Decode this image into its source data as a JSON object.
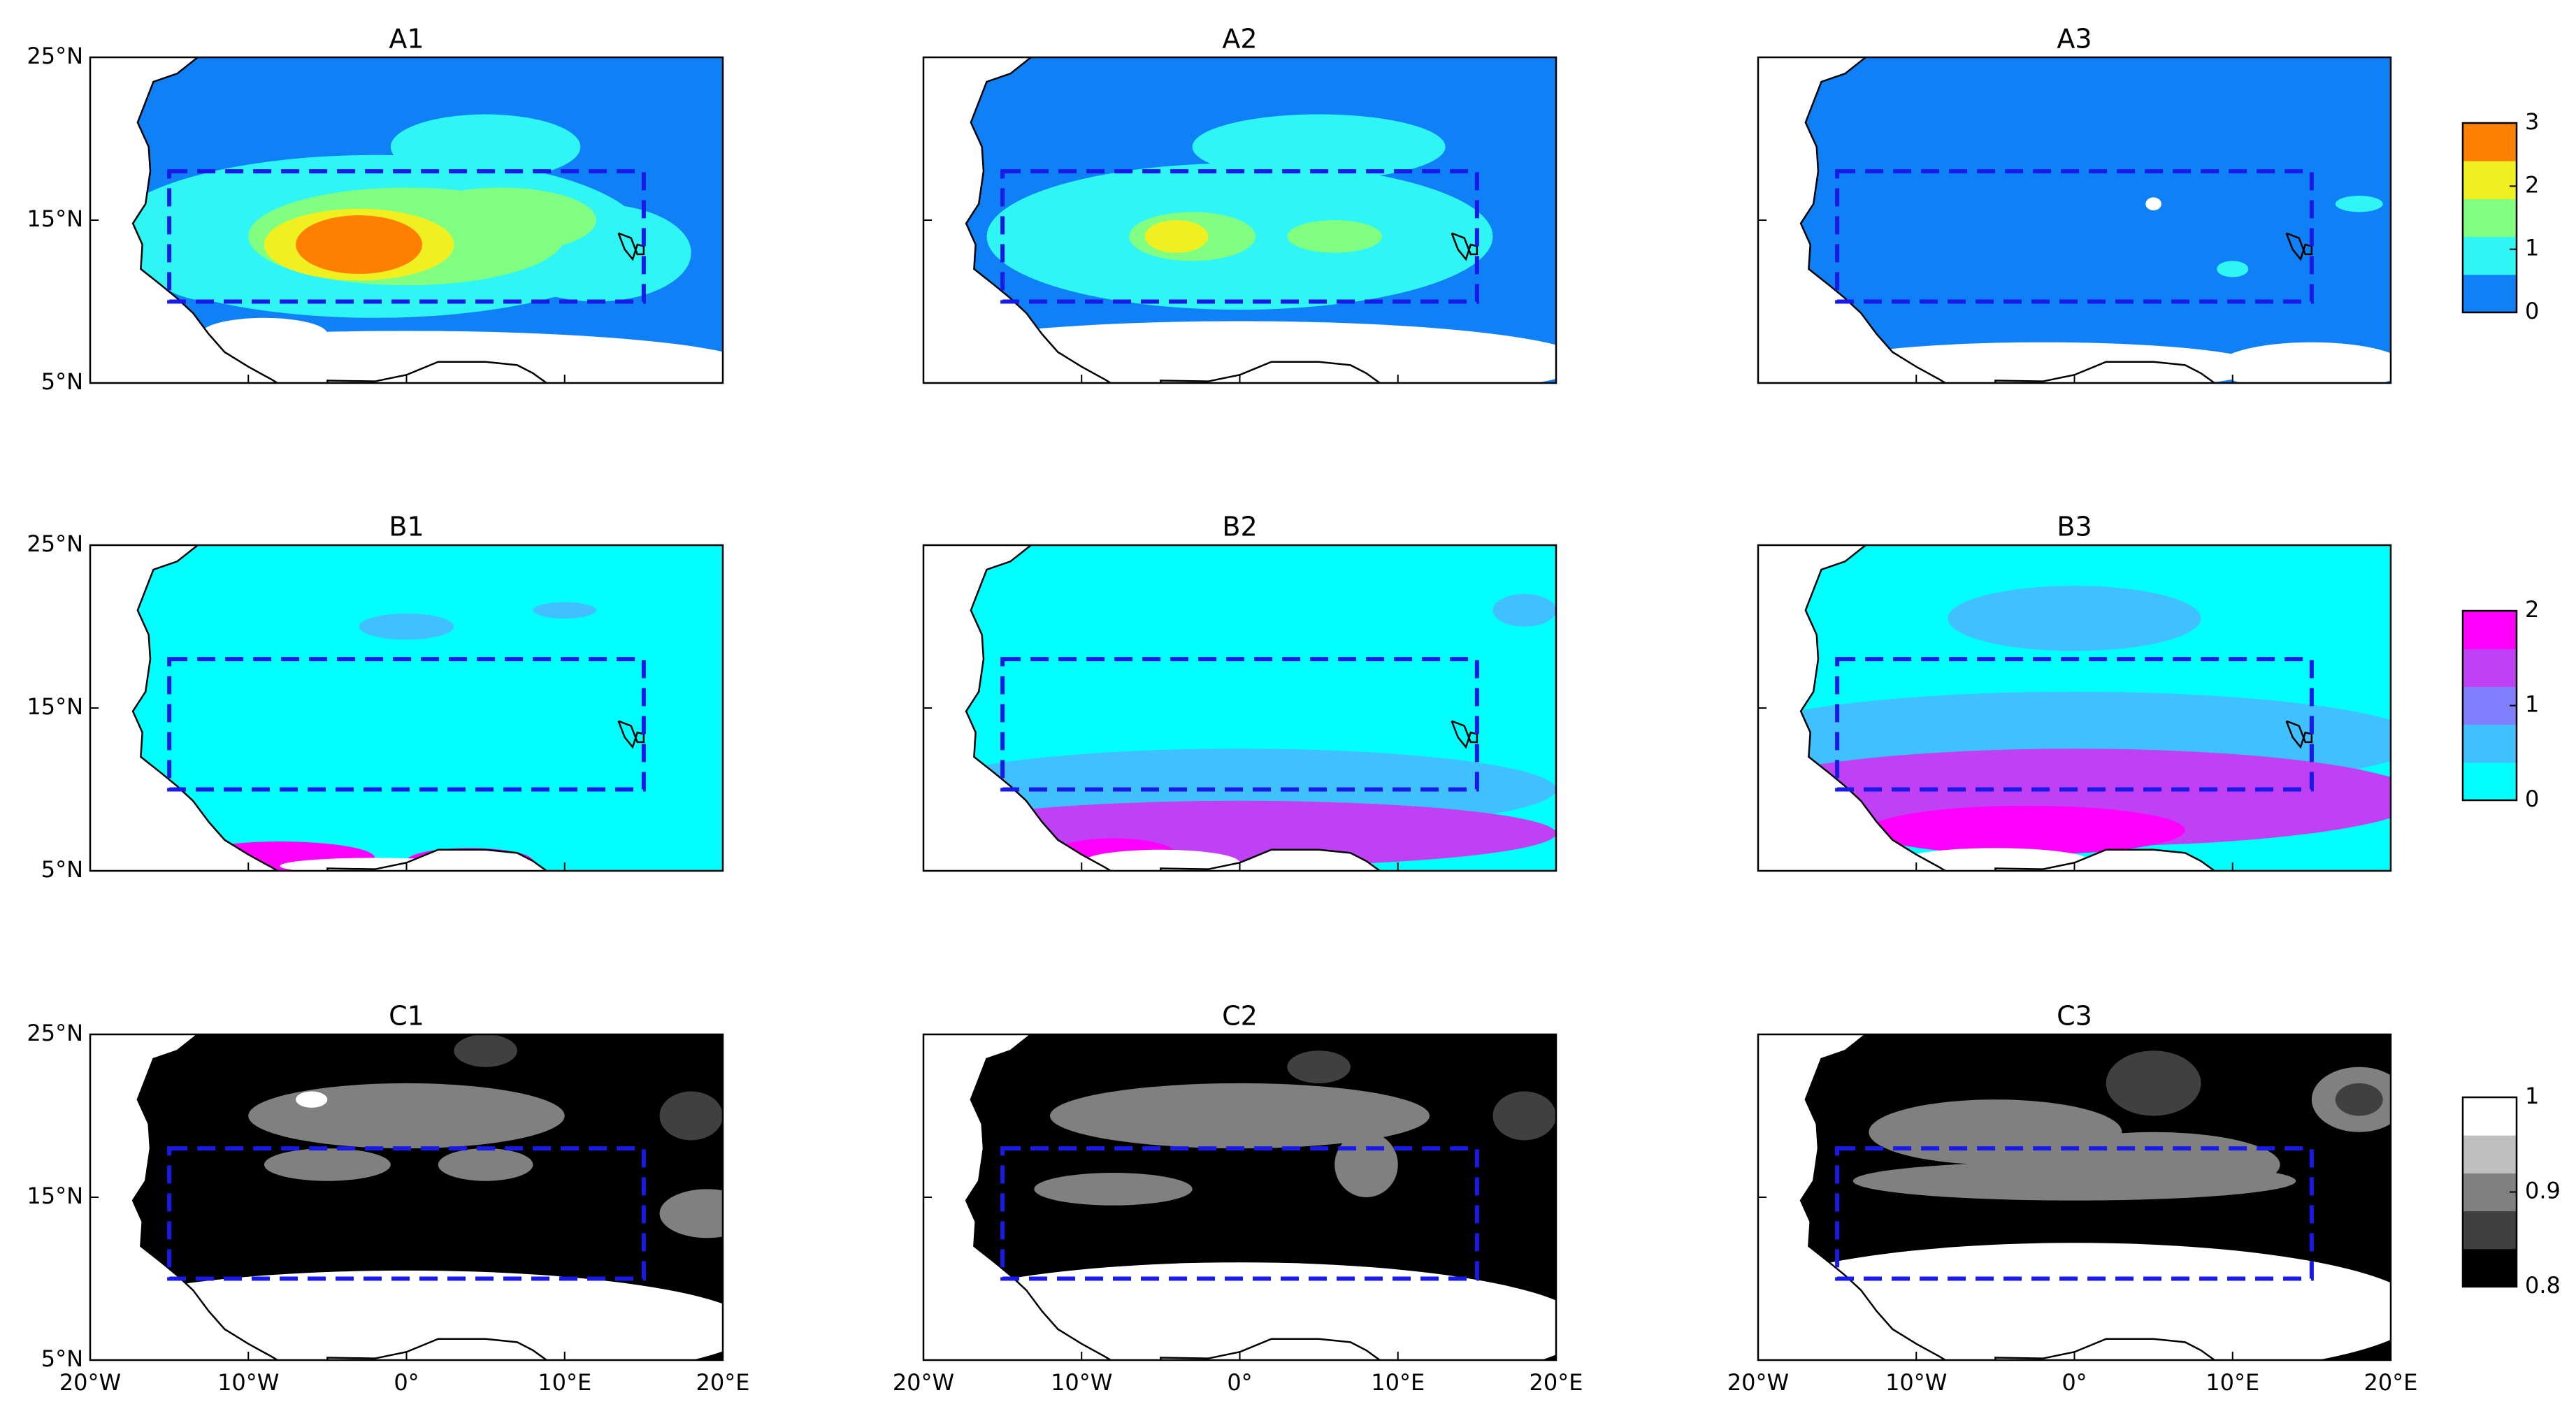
{
  "xlim": [
    -20,
    20
  ],
  "ylim": [
    5,
    25
  ],
  "xticks": [
    {
      "value": -20,
      "label": "20°W"
    },
    {
      "value": -10,
      "label": "10°W"
    },
    {
      "value": 0,
      "label": "0°"
    },
    {
      "value": 10,
      "label": "10°E"
    },
    {
      "value": 20,
      "label": "20°E"
    }
  ],
  "yticks": [
    {
      "value": 5,
      "label": "5°N"
    },
    {
      "value": 15,
      "label": "15°N"
    },
    {
      "value": 25,
      "label": "25°N"
    }
  ],
  "rows": [
    {
      "panels": [
        {
          "title": "A1"
        },
        {
          "title": "A2"
        },
        {
          "title": "A3"
        }
      ],
      "colorbar": {
        "lim": [
          0,
          3
        ],
        "ticks": [
          0,
          1,
          2,
          3
        ],
        "colors": [
          "#0f80f5",
          "#2ff5f5",
          "#80ff80",
          "#f0f020",
          "#ff8000"
        ]
      }
    },
    {
      "panels": [
        {
          "title": "B1"
        },
        {
          "title": "B2"
        },
        {
          "title": "B3"
        }
      ],
      "colorbar": {
        "lim": [
          0,
          2
        ],
        "ticks": [
          0,
          1,
          2
        ],
        "colors": [
          "#00ffff",
          "#40c0ff",
          "#8080ff",
          "#c040f5",
          "#ff00ff"
        ]
      }
    },
    {
      "panels": [
        {
          "title": "C1"
        },
        {
          "title": "C2"
        },
        {
          "title": "C3"
        }
      ],
      "colorbar": {
        "lim": [
          0.8,
          1
        ],
        "ticks": [
          0.8,
          0.9,
          1
        ],
        "colors": [
          "#000000",
          "#404040",
          "#808080",
          "#bfbfbf",
          "#ffffff"
        ]
      }
    }
  ]
}
